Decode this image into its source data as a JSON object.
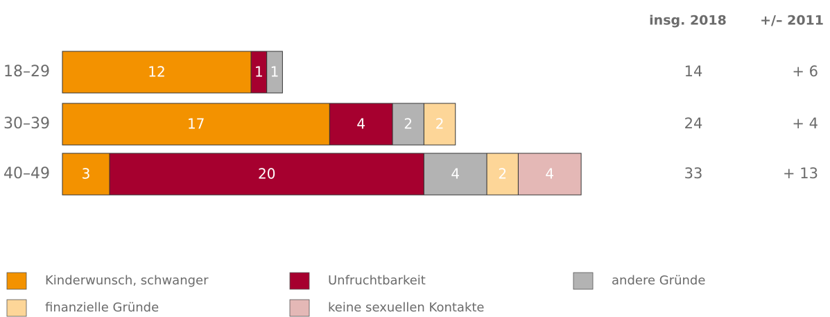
{
  "chart_data": {
    "type": "bar",
    "orientation": "horizontal",
    "categories": [
      "18–29",
      "30–39",
      "40–49"
    ],
    "series": [
      {
        "name": "Kinderwunsch, schwanger",
        "color": "#f39200",
        "values": [
          12,
          17,
          3
        ]
      },
      {
        "name": "Unfruchtbarkeit",
        "color": "#a6002f",
        "values": [
          1,
          4,
          20
        ]
      },
      {
        "name": "andere Gründe",
        "color": "#b3b3b3",
        "values": [
          1,
          2,
          4
        ]
      },
      {
        "name": "finanzielle Gründe",
        "color": "#fdd698",
        "values": [
          null,
          2,
          2
        ]
      },
      {
        "name": "keine sexuellen Kontakte",
        "color": "#e4b8b6",
        "values": [
          null,
          null,
          4
        ]
      }
    ],
    "columns": [
      {
        "title": "insg. 2018",
        "values": [
          14,
          24,
          33
        ]
      },
      {
        "title": "+/– 2011",
        "values": [
          6,
          4,
          13
        ],
        "value_labels": [
          "+ 6",
          "+ 4",
          "+ 13"
        ]
      }
    ]
  }
}
